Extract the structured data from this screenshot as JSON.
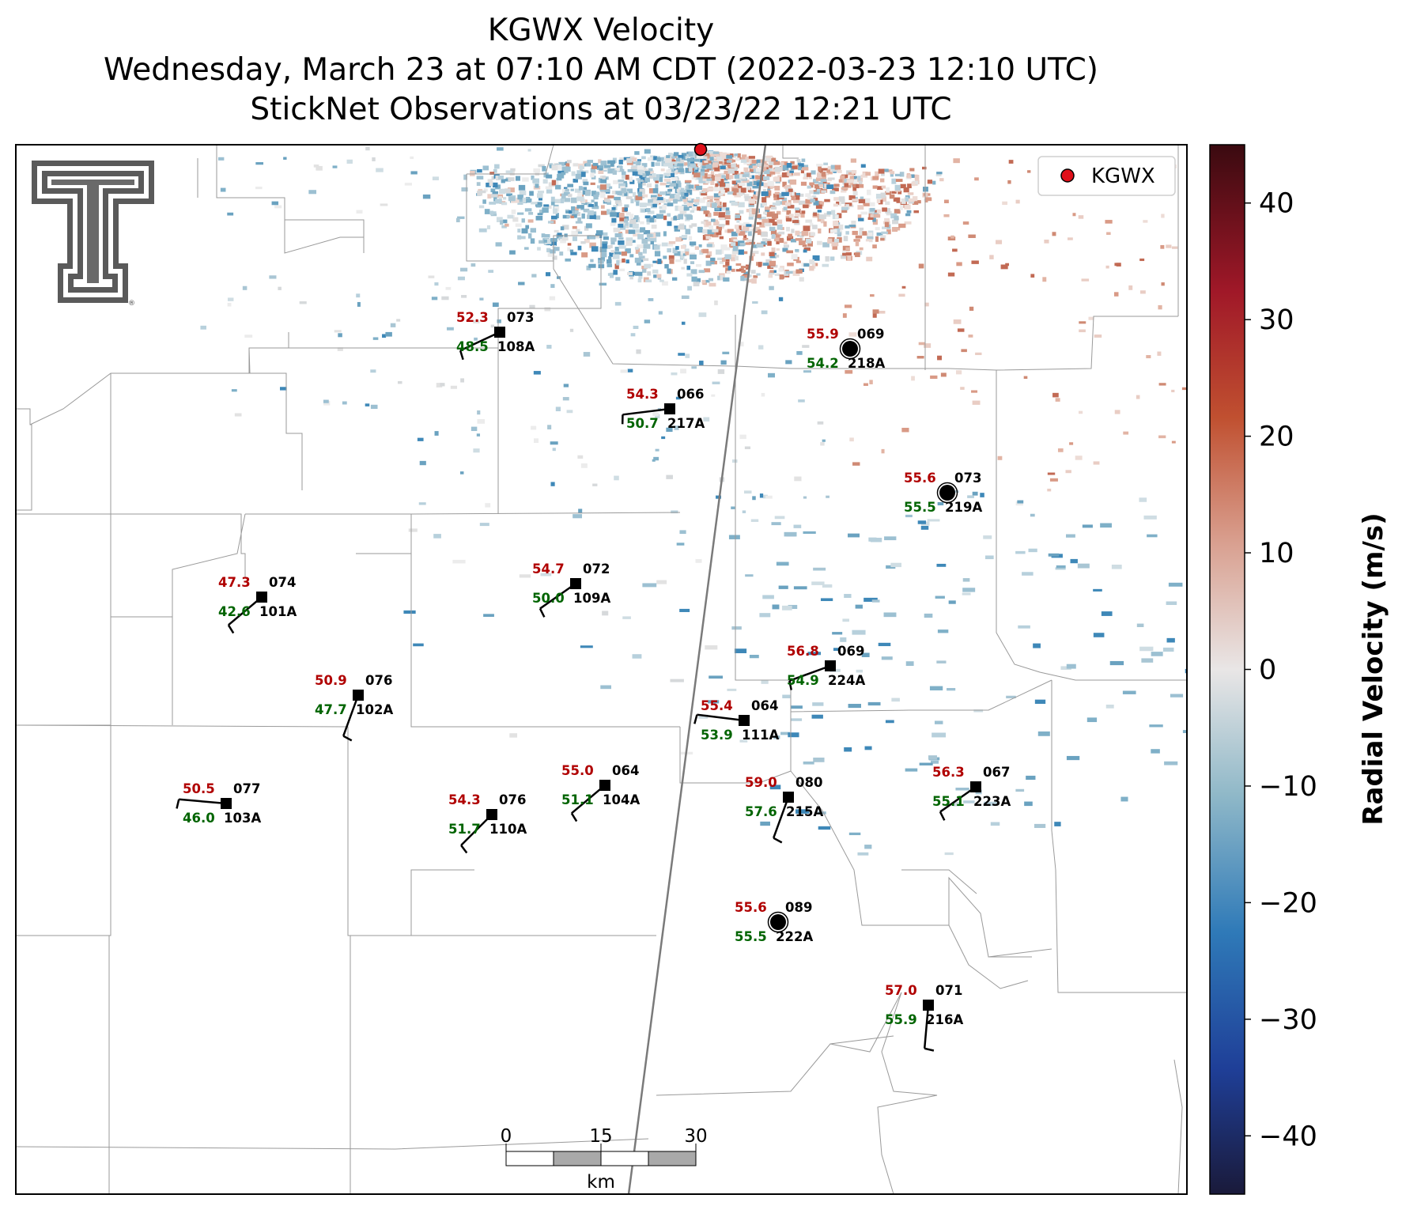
{
  "header": {
    "title_line1": "KGWX Velocity",
    "title_line2": "Wednesday, March 23 at 07:10 AM CDT (2022-03-23 12:10 UTC)",
    "title_line3": "StickNet Observations at 03/23/22 12:21 UTC"
  },
  "legend": {
    "radar_label": "KGWX",
    "marker_color": "#e0101a"
  },
  "colorbar": {
    "label": "Radial Velocity (m/s)",
    "ticks": [
      "40",
      "30",
      "20",
      "10",
      "0",
      "−10",
      "−20",
      "−30",
      "−40"
    ],
    "range": [
      -45,
      45
    ],
    "colors": [
      "#1a1a3a",
      "#1f4fa8",
      "#3f8fc0",
      "#8fb8c8",
      "#e9e6e6",
      "#d9a090",
      "#c05030",
      "#a01828",
      "#3a0a10"
    ]
  },
  "scalebar": {
    "labels": [
      "0",
      "15",
      "30"
    ],
    "unit": "km"
  },
  "stations": [
    {
      "id": "108A",
      "temp": "52.3",
      "dew": "48.5",
      "dir": "073"
    },
    {
      "id": "218A",
      "temp": "55.9",
      "dew": "54.2",
      "dir": "069"
    },
    {
      "id": "217A",
      "temp": "54.3",
      "dew": "50.7",
      "dir": "066"
    },
    {
      "id": "219A",
      "temp": "55.6",
      "dew": "55.5",
      "dir": "073"
    },
    {
      "id": "101A",
      "temp": "47.3",
      "dew": "42.6",
      "dir": "074"
    },
    {
      "id": "109A",
      "temp": "54.7",
      "dew": "50.0",
      "dir": "072"
    },
    {
      "id": "224A",
      "temp": "56.8",
      "dew": "54.9",
      "dir": "069"
    },
    {
      "id": "102A",
      "temp": "50.9",
      "dew": "47.7",
      "dir": "076"
    },
    {
      "id": "111A",
      "temp": "55.4",
      "dew": "53.9",
      "dir": "064"
    },
    {
      "id": "103A",
      "temp": "50.5",
      "dew": "46.0",
      "dir": "077"
    },
    {
      "id": "104A",
      "temp": "55.0",
      "dew": "51.1",
      "dir": "064"
    },
    {
      "id": "110A",
      "temp": "54.3",
      "dew": "51.7",
      "dir": "076"
    },
    {
      "id": "215A",
      "temp": "59.0",
      "dew": "57.6",
      "dir": "080"
    },
    {
      "id": "223A",
      "temp": "56.3",
      "dew": "55.1",
      "dir": "067"
    },
    {
      "id": "222A",
      "temp": "55.6",
      "dew": "55.5",
      "dir": "089"
    },
    {
      "id": "216A",
      "temp": "57.0",
      "dew": "55.9",
      "dir": "071"
    }
  ]
}
